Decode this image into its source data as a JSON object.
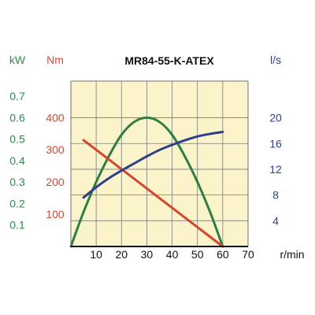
{
  "chart_data": {
    "type": "line",
    "title": "MR84-55-K-ATEX",
    "background": "#FBF4CB",
    "grid": true,
    "x": {
      "label": "r/min",
      "range": [
        0,
        70
      ],
      "ticks": [
        "10",
        "20",
        "30",
        "40",
        "50",
        "60",
        "70"
      ],
      "tick_values": [
        10,
        20,
        30,
        40,
        50,
        60,
        70
      ]
    },
    "axes": {
      "kw": {
        "unit": "kW",
        "color": "#2E8B4A",
        "range": [
          0,
          0.77
        ],
        "ticks": [
          "0.1",
          "0.2",
          "0.3",
          "0.4",
          "0.5",
          "0.6",
          "0.7"
        ],
        "tick_values": [
          0.1,
          0.2,
          0.3,
          0.4,
          0.5,
          0.6,
          0.7
        ]
      },
      "nm": {
        "unit": "Nm",
        "color": "#D24A32",
        "range": [
          0,
          513
        ],
        "ticks": [
          "100",
          "200",
          "300",
          "400"
        ],
        "tick_values": [
          100,
          200,
          300,
          400
        ]
      },
      "ls": {
        "unit": "l/s",
        "color": "#2E3F8C",
        "range": [
          0,
          25.7
        ],
        "ticks": [
          "4",
          "8",
          "12",
          "16",
          "20"
        ],
        "tick_values": [
          4,
          8,
          12,
          16,
          20
        ]
      }
    },
    "series": [
      {
        "axis": "kw",
        "color": "#2E7E44",
        "x": [
          0,
          5,
          10,
          15,
          20,
          25,
          30,
          35,
          40,
          45,
          50,
          55,
          60
        ],
        "y": [
          0.0,
          0.16,
          0.3,
          0.42,
          0.52,
          0.58,
          0.6,
          0.58,
          0.52,
          0.42,
          0.3,
          0.16,
          0.0
        ]
      },
      {
        "axis": "nm",
        "color": "#D4452E",
        "x": [
          5,
          60
        ],
        "y": [
          330,
          0
        ]
      },
      {
        "axis": "ls",
        "color": "#2E3F8C",
        "x": [
          5,
          10,
          15,
          20,
          25,
          30,
          35,
          40,
          45,
          50,
          55,
          60
        ],
        "y": [
          7.6,
          9.2,
          10.6,
          11.8,
          12.9,
          14.0,
          15.0,
          15.8,
          16.5,
          17.1,
          17.5,
          17.8
        ]
      }
    ]
  }
}
